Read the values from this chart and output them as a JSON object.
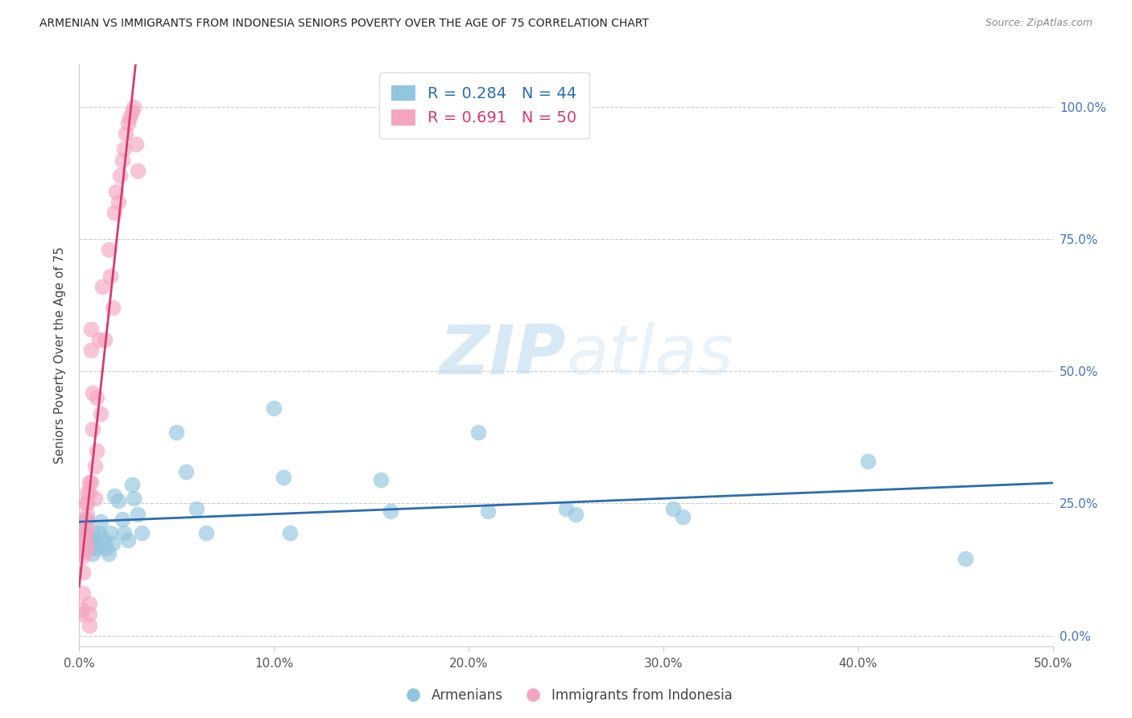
{
  "title": "ARMENIAN VS IMMIGRANTS FROM INDONESIA SENIORS POVERTY OVER THE AGE OF 75 CORRELATION CHART",
  "source": "Source: ZipAtlas.com",
  "ylabel": "Seniors Poverty Over the Age of 75",
  "xlim": [
    0.0,
    0.5
  ],
  "ylim": [
    -0.02,
    1.08
  ],
  "plot_ylim": [
    0.0,
    1.0
  ],
  "xticks": [
    0.0,
    0.1,
    0.2,
    0.3,
    0.4,
    0.5
  ],
  "xticklabels": [
    "0.0%",
    "10.0%",
    "20.0%",
    "30.0%",
    "40.0%",
    "50.0%"
  ],
  "yticks_right": [
    0.0,
    0.25,
    0.5,
    0.75,
    1.0
  ],
  "yticklabels_right": [
    "0.0%",
    "25.0%",
    "50.0%",
    "75.0%",
    "100.0%"
  ],
  "blue_R": 0.284,
  "blue_N": 44,
  "pink_R": 0.691,
  "pink_N": 50,
  "blue_color": "#92c5de",
  "pink_color": "#f4a6c0",
  "blue_line_color": "#2b6cb0",
  "pink_line_color": "#d63b6e",
  "legend_label_blue": "Armenians",
  "legend_label_pink": "Immigrants from Indonesia",
  "watermark_zip": "ZIP",
  "watermark_atlas": "atlas",
  "right_tick_color": "#4472c4",
  "blue_x": [
    0.002,
    0.003,
    0.004,
    0.005,
    0.005,
    0.006,
    0.007,
    0.007,
    0.008,
    0.009,
    0.01,
    0.011,
    0.012,
    0.013,
    0.014,
    0.015,
    0.016,
    0.017,
    0.018,
    0.02,
    0.022,
    0.023,
    0.025,
    0.027,
    0.028,
    0.03,
    0.032,
    0.05,
    0.055,
    0.06,
    0.065,
    0.1,
    0.105,
    0.108,
    0.155,
    0.16,
    0.205,
    0.21,
    0.25,
    0.255,
    0.305,
    0.31,
    0.405,
    0.455
  ],
  "blue_y": [
    0.2,
    0.215,
    0.22,
    0.185,
    0.175,
    0.165,
    0.155,
    0.195,
    0.175,
    0.165,
    0.195,
    0.215,
    0.185,
    0.175,
    0.165,
    0.155,
    0.195,
    0.175,
    0.265,
    0.255,
    0.22,
    0.195,
    0.18,
    0.285,
    0.26,
    0.23,
    0.195,
    0.385,
    0.31,
    0.24,
    0.195,
    0.43,
    0.3,
    0.195,
    0.295,
    0.235,
    0.385,
    0.235,
    0.24,
    0.23,
    0.24,
    0.225,
    0.33,
    0.145
  ],
  "pink_x": [
    0.001,
    0.001,
    0.002,
    0.002,
    0.002,
    0.002,
    0.003,
    0.003,
    0.003,
    0.003,
    0.003,
    0.004,
    0.004,
    0.004,
    0.004,
    0.004,
    0.005,
    0.005,
    0.005,
    0.005,
    0.005,
    0.006,
    0.006,
    0.006,
    0.007,
    0.007,
    0.008,
    0.008,
    0.009,
    0.009,
    0.01,
    0.011,
    0.012,
    0.013,
    0.015,
    0.016,
    0.017,
    0.018,
    0.019,
    0.02,
    0.021,
    0.022,
    0.023,
    0.024,
    0.025,
    0.026,
    0.027,
    0.028,
    0.029,
    0.03
  ],
  "pink_y": [
    0.05,
    0.04,
    0.18,
    0.15,
    0.12,
    0.08,
    0.25,
    0.22,
    0.2,
    0.18,
    0.16,
    0.27,
    0.25,
    0.23,
    0.2,
    0.17,
    0.29,
    0.27,
    0.06,
    0.04,
    0.02,
    0.29,
    0.58,
    0.54,
    0.46,
    0.39,
    0.32,
    0.26,
    0.45,
    0.35,
    0.56,
    0.42,
    0.66,
    0.56,
    0.73,
    0.68,
    0.62,
    0.8,
    0.84,
    0.82,
    0.87,
    0.9,
    0.92,
    0.95,
    0.97,
    0.98,
    0.99,
    1.0,
    0.93,
    0.88
  ]
}
